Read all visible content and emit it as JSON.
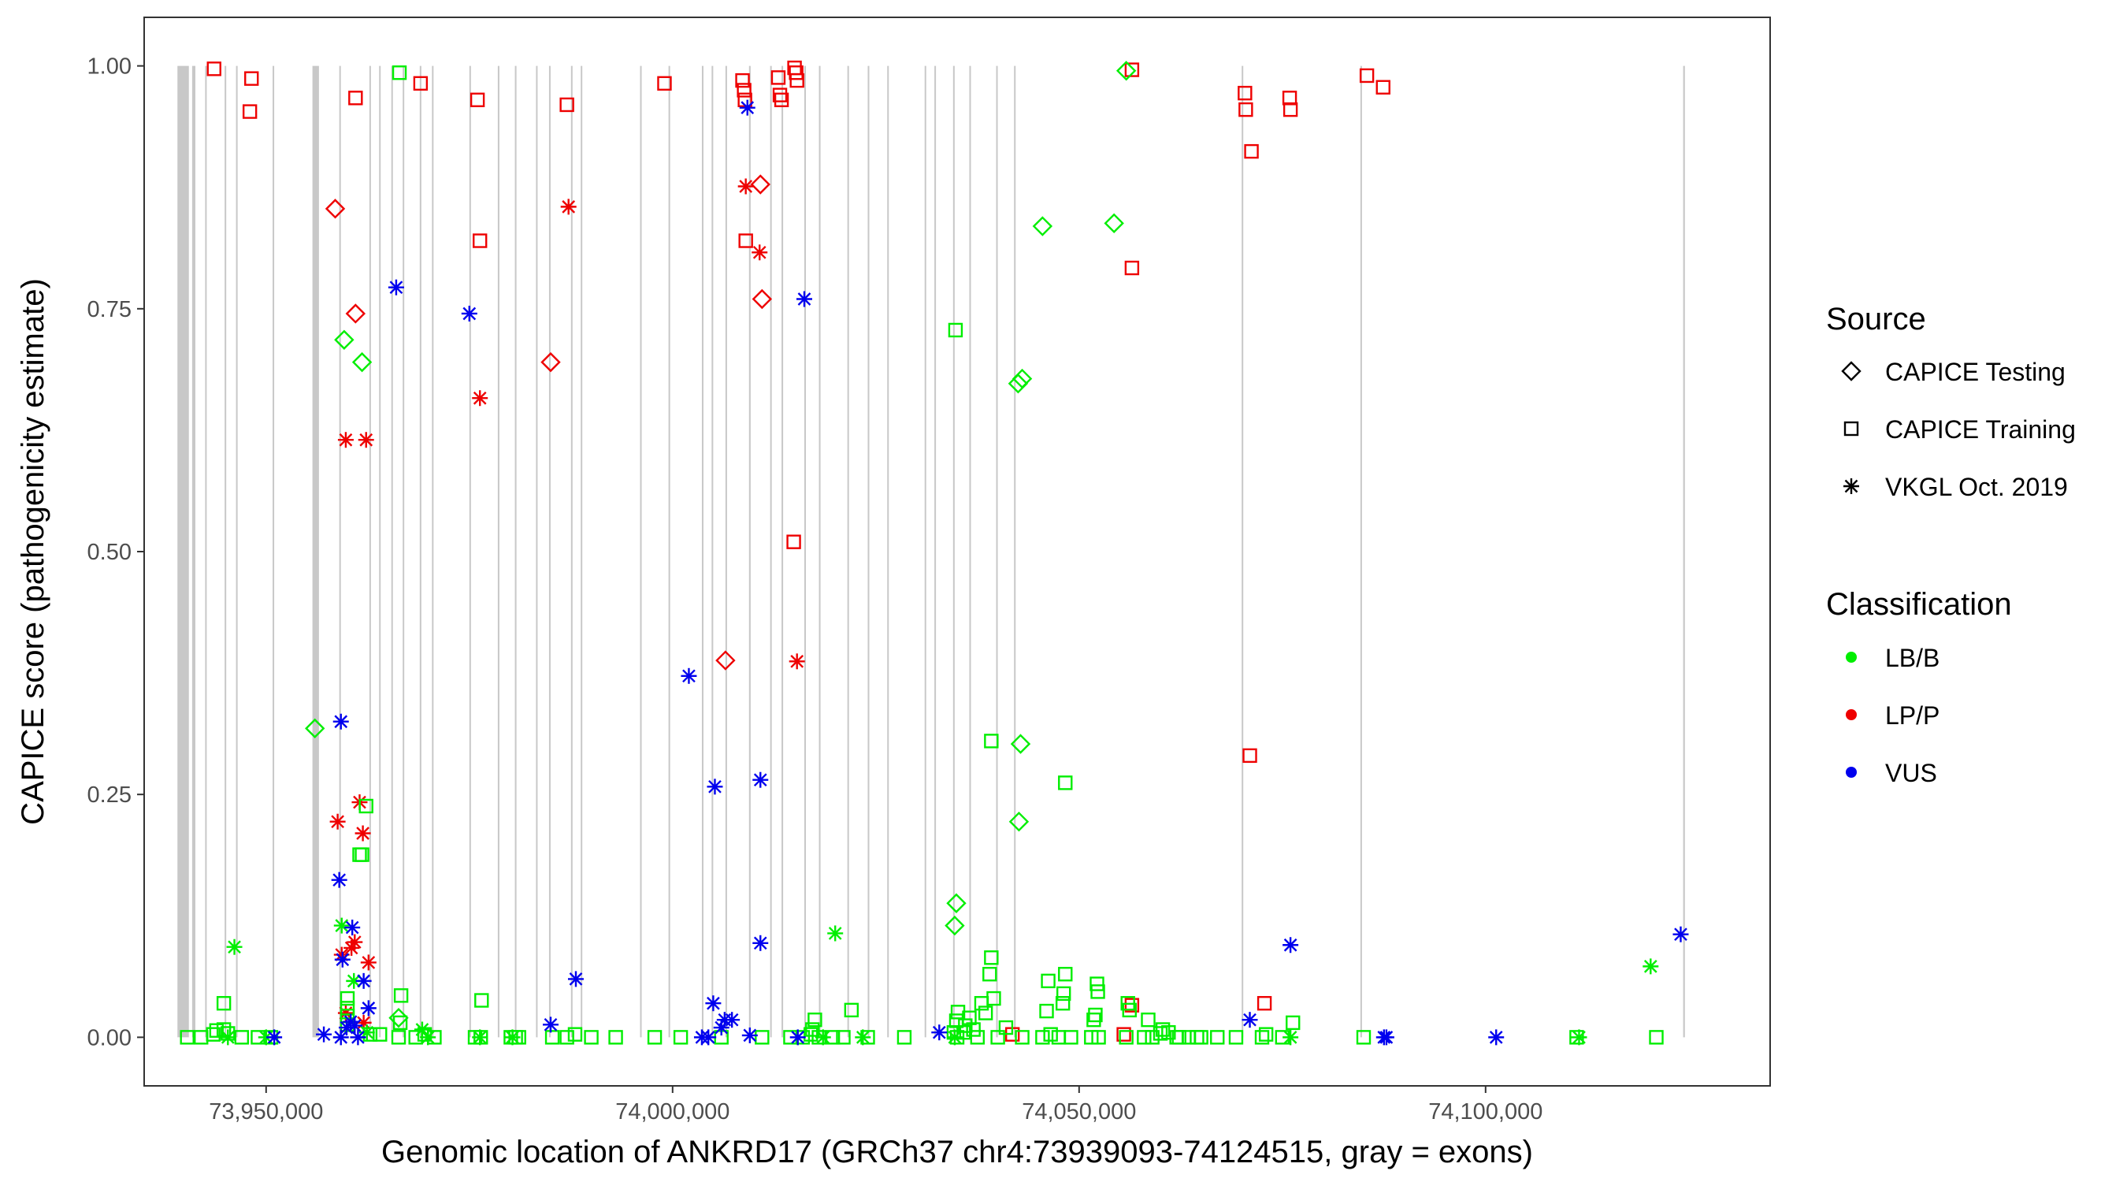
{
  "chart_data": {
    "type": "scatter",
    "xlabel": "Genomic location of ANKRD17 (GRCh37 chr4:73939093-74124515, gray = exons)",
    "ylabel": "CAPICE score (pathogenicity estimate)",
    "xlim": [
      73935000,
      74135000
    ],
    "ylim": [
      -0.05,
      1.05
    ],
    "x_ticks": [
      {
        "value": 73950000,
        "label": "73,950,000"
      },
      {
        "value": 74000000,
        "label": "74,000,000"
      },
      {
        "value": 74050000,
        "label": "74,050,000"
      },
      {
        "value": 74100000,
        "label": "74,100,000"
      }
    ],
    "y_ticks": [
      {
        "value": 0.0,
        "label": "0.00"
      },
      {
        "value": 0.25,
        "label": "0.25"
      },
      {
        "value": 0.5,
        "label": "0.50"
      },
      {
        "value": 0.75,
        "label": "0.75"
      },
      {
        "value": 1.0,
        "label": "1.00"
      }
    ],
    "exon_color": "#c8c8c8",
    "exons": [
      [
        73939093,
        73940500
      ],
      [
        73940900,
        73941300
      ],
      [
        73942500,
        73942650
      ],
      [
        73944900,
        73945050
      ],
      [
        73946300,
        73946400
      ],
      [
        73950800,
        73950900
      ],
      [
        73955700,
        73956500
      ],
      [
        73959000,
        73959100
      ],
      [
        73962700,
        73962800
      ],
      [
        73963900,
        73964000
      ],
      [
        73965400,
        73965500
      ],
      [
        73966800,
        73966900
      ],
      [
        73968900,
        73969000
      ],
      [
        73970400,
        73970500
      ],
      [
        73975000,
        73975100
      ],
      [
        73978500,
        73978600
      ],
      [
        73980600,
        73980700
      ],
      [
        73983200,
        73983300
      ],
      [
        73984800,
        73984900
      ],
      [
        73987500,
        73987600
      ],
      [
        73988700,
        73988800
      ],
      [
        73996000,
        73996100
      ],
      [
        73999500,
        73999600
      ],
      [
        74003600,
        74003700
      ],
      [
        74004800,
        74004900
      ],
      [
        74006500,
        74006600
      ],
      [
        74009400,
        74009600
      ],
      [
        74012000,
        74012100
      ],
      [
        74013400,
        74013500
      ],
      [
        74016200,
        74016300
      ],
      [
        74018000,
        74018100
      ],
      [
        74021500,
        74021600
      ],
      [
        74024000,
        74024100
      ],
      [
        74026400,
        74026500
      ],
      [
        74031000,
        74031100
      ],
      [
        74032200,
        74032300
      ],
      [
        74034500,
        74034600
      ],
      [
        74036500,
        74036600
      ],
      [
        74039800,
        74039900
      ],
      [
        74042000,
        74042100
      ],
      [
        74070000,
        74070100
      ],
      [
        74084600,
        74084700
      ],
      [
        74124300,
        74124515
      ]
    ],
    "legend_source": {
      "title": "Source",
      "items": [
        {
          "label": "CAPICE Testing",
          "shape": "diamond"
        },
        {
          "label": "CAPICE Training",
          "shape": "square"
        },
        {
          "label": "VKGL Oct. 2019",
          "shape": "asterisk"
        }
      ]
    },
    "legend_class": {
      "title": "Classification",
      "items": [
        {
          "label": "LB/B",
          "color": "#00ee00"
        },
        {
          "label": "LP/P",
          "color": "#ee0000"
        },
        {
          "label": "VUS",
          "color": "#0000ee"
        }
      ]
    },
    "series": [
      {
        "name": "CAPICE Training LP/P",
        "shape": "square",
        "color": "#ee0000",
        "points": [
          [
            73943600,
            0.997
          ],
          [
            73948000,
            0.953
          ],
          [
            73948200,
            0.987
          ],
          [
            73961000,
            0.967
          ],
          [
            73969000,
            0.982
          ],
          [
            73976000,
            0.965
          ],
          [
            73976300,
            0.82
          ],
          [
            73987000,
            0.96
          ],
          [
            73999000,
            0.982
          ],
          [
            74008600,
            0.985
          ],
          [
            74008800,
            0.975
          ],
          [
            74008900,
            0.965
          ],
          [
            74009000,
            0.82
          ],
          [
            74013000,
            0.988
          ],
          [
            74013200,
            0.97
          ],
          [
            74013400,
            0.965
          ],
          [
            74015000,
            0.998
          ],
          [
            74015200,
            0.993
          ],
          [
            74015300,
            0.985
          ],
          [
            74014900,
            0.51
          ],
          [
            74056500,
            0.996
          ],
          [
            74056500,
            0.792
          ],
          [
            74055500,
            0.003
          ],
          [
            74070400,
            0.972
          ],
          [
            74070500,
            0.955
          ],
          [
            74071200,
            0.912
          ],
          [
            74075900,
            0.967
          ],
          [
            74076000,
            0.955
          ],
          [
            74085400,
            0.99
          ],
          [
            74087400,
            0.978
          ],
          [
            74071000,
            0.29
          ],
          [
            74072800,
            0.035
          ],
          [
            74056500,
            0.033
          ],
          [
            74041800,
            0.003
          ]
        ]
      },
      {
        "name": "CAPICE Testing LP/P",
        "shape": "diamond",
        "color": "#ee0000",
        "points": [
          [
            73958500,
            0.853
          ],
          [
            73961000,
            0.745
          ],
          [
            73985000,
            0.695
          ],
          [
            74010800,
            0.878
          ],
          [
            74011000,
            0.76
          ],
          [
            74006500,
            0.388
          ]
        ]
      },
      {
        "name": "VKGL LP/P",
        "shape": "asterisk",
        "color": "#ee0000",
        "points": [
          [
            73976300,
            0.658
          ],
          [
            73987200,
            0.855
          ],
          [
            74009000,
            0.876
          ],
          [
            74010700,
            0.808
          ],
          [
            74015300,
            0.387
          ],
          [
            73959800,
            0.615
          ],
          [
            73962300,
            0.615
          ],
          [
            73958800,
            0.222
          ],
          [
            73961500,
            0.242
          ],
          [
            73961900,
            0.21
          ],
          [
            73960500,
            0.092
          ],
          [
            73960900,
            0.098
          ],
          [
            73959300,
            0.085
          ],
          [
            73962600,
            0.077
          ],
          [
            73962000,
            0.015
          ],
          [
            73959800,
            0.025
          ]
        ]
      },
      {
        "name": "CAPICE Training LB/B",
        "shape": "square",
        "color": "#00ee00",
        "points": [
          [
            73966400,
            0.993
          ],
          [
            73962300,
            0.238
          ],
          [
            73961500,
            0.188
          ],
          [
            73961800,
            0.188
          ],
          [
            73960000,
            0.04
          ],
          [
            73960000,
            0.03
          ],
          [
            73960000,
            0.022
          ],
          [
            73960000,
            0.013
          ],
          [
            73966600,
            0.043
          ],
          [
            73966500,
            0.015
          ],
          [
            73976500,
            0.038
          ],
          [
            73940300,
            0.0
          ],
          [
            73942000,
            0.0
          ],
          [
            73943500,
            0.003
          ],
          [
            73943900,
            0.007
          ],
          [
            73944800,
            0.008
          ],
          [
            73945300,
            0.004
          ],
          [
            73947000,
            0.0
          ],
          [
            73949000,
            0.0
          ],
          [
            73950600,
            0.0
          ],
          [
            73944800,
            0.035
          ],
          [
            73962800,
            0.003
          ],
          [
            73964000,
            0.003
          ],
          [
            73966300,
            0.0
          ],
          [
            73968400,
            0.0
          ],
          [
            73969500,
            0.003
          ],
          [
            73970700,
            0.0
          ],
          [
            73975700,
            0.0
          ],
          [
            73976400,
            0.0
          ],
          [
            73980100,
            0.0
          ],
          [
            73980700,
            0.0
          ],
          [
            73981100,
            0.0
          ],
          [
            73985200,
            0.0
          ],
          [
            73987000,
            0.0
          ],
          [
            73988000,
            0.003
          ],
          [
            73990000,
            0.0
          ],
          [
            73993000,
            0.0
          ],
          [
            73997800,
            0.0
          ],
          [
            74001000,
            0.0
          ],
          [
            74006000,
            0.0
          ],
          [
            74011000,
            0.0
          ],
          [
            74014500,
            0.0
          ],
          [
            74016000,
            0.0
          ],
          [
            74017000,
            0.003
          ],
          [
            74017200,
            0.008
          ],
          [
            74017500,
            0.018
          ],
          [
            74018000,
            0.0
          ],
          [
            74019700,
            0.0
          ],
          [
            74021000,
            0.0
          ],
          [
            74022000,
            0.028
          ],
          [
            74024000,
            0.0
          ],
          [
            74028500,
            0.0
          ],
          [
            74035000,
            0.0
          ],
          [
            74035800,
            0.005
          ],
          [
            74036000,
            0.012
          ],
          [
            74036500,
            0.02
          ],
          [
            74037000,
            0.008
          ],
          [
            74037500,
            0.0
          ],
          [
            74038000,
            0.035
          ],
          [
            74038500,
            0.025
          ],
          [
            74039000,
            0.065
          ],
          [
            74039200,
            0.082
          ],
          [
            74039200,
            0.305
          ],
          [
            74034800,
            0.728
          ],
          [
            74039500,
            0.04
          ],
          [
            74040000,
            0.0
          ],
          [
            74041000,
            0.01
          ],
          [
            74043000,
            0.0
          ],
          [
            74045500,
            0.0
          ],
          [
            74046000,
            0.027
          ],
          [
            74046200,
            0.058
          ],
          [
            74046500,
            0.003
          ],
          [
            74047500,
            0.0
          ],
          [
            74048000,
            0.035
          ],
          [
            74048100,
            0.045
          ],
          [
            74048300,
            0.065
          ],
          [
            74048300,
            0.262
          ],
          [
            74049000,
            0.0
          ],
          [
            74051500,
            0.0
          ],
          [
            74051800,
            0.018
          ],
          [
            74052000,
            0.023
          ],
          [
            74052200,
            0.055
          ],
          [
            74052300,
            0.047
          ],
          [
            74052400,
            0.0
          ],
          [
            74055800,
            0.0
          ],
          [
            74056000,
            0.035
          ],
          [
            74056200,
            0.028
          ],
          [
            74058000,
            0.0
          ],
          [
            74058500,
            0.018
          ],
          [
            74059000,
            0.0
          ],
          [
            74060300,
            0.008
          ],
          [
            74061000,
            0.005
          ],
          [
            74062000,
            0.0
          ],
          [
            74063500,
            0.0
          ],
          [
            74064500,
            0.0
          ],
          [
            74065000,
            0.0
          ],
          [
            74067000,
            0.0
          ],
          [
            74069300,
            0.0
          ],
          [
            74072500,
            0.0
          ],
          [
            74073000,
            0.003
          ],
          [
            74075000,
            0.0
          ],
          [
            74076300,
            0.015
          ],
          [
            74085000,
            0.0
          ],
          [
            74111200,
            0.0
          ],
          [
            74121000,
            0.0
          ],
          [
            74034600,
            0.005
          ],
          [
            74034900,
            0.017
          ],
          [
            74035100,
            0.026
          ],
          [
            74060000,
            0.004
          ],
          [
            74062300,
            0.0
          ]
        ]
      },
      {
        "name": "CAPICE Testing LB/B",
        "shape": "diamond",
        "color": "#00ee00",
        "points": [
          [
            74055800,
            0.995
          ],
          [
            74045500,
            0.835
          ],
          [
            74054300,
            0.838
          ],
          [
            74043000,
            0.678
          ],
          [
            74042500,
            0.673
          ],
          [
            73959600,
            0.718
          ],
          [
            73961800,
            0.695
          ],
          [
            74042800,
            0.302
          ],
          [
            74042600,
            0.222
          ],
          [
            73956000,
            0.318
          ],
          [
            74034900,
            0.138
          ],
          [
            74034700,
            0.115
          ],
          [
            73966300,
            0.02
          ]
        ]
      },
      {
        "name": "VKGL LB/B",
        "shape": "asterisk",
        "color": "#00ee00",
        "points": [
          [
            73946100,
            0.093
          ],
          [
            73959300,
            0.115
          ],
          [
            73960800,
            0.058
          ],
          [
            74020000,
            0.107
          ],
          [
            74120300,
            0.073
          ],
          [
            73962400,
            0.005
          ],
          [
            73969200,
            0.008
          ],
          [
            73969900,
            0.0
          ],
          [
            73976300,
            0.0
          ],
          [
            73980300,
            0.0
          ],
          [
            74018500,
            0.0
          ],
          [
            74023400,
            0.0
          ],
          [
            74034700,
            0.0
          ],
          [
            74076000,
            0.0
          ],
          [
            74111500,
            0.0
          ],
          [
            73945300,
            0.0
          ],
          [
            73950000,
            0.0
          ]
        ]
      },
      {
        "name": "VKGL VUS",
        "shape": "asterisk",
        "color": "#0000ee",
        "points": [
          [
            74009200,
            0.957
          ],
          [
            73966000,
            0.772
          ],
          [
            73975000,
            0.745
          ],
          [
            74016200,
            0.76
          ],
          [
            74002000,
            0.372
          ],
          [
            73959200,
            0.325
          ],
          [
            74005200,
            0.258
          ],
          [
            74010800,
            0.265
          ],
          [
            73959000,
            0.162
          ],
          [
            73960600,
            0.113
          ],
          [
            73959400,
            0.08
          ],
          [
            73962000,
            0.058
          ],
          [
            73962600,
            0.03
          ],
          [
            74010800,
            0.097
          ],
          [
            73988100,
            0.06
          ],
          [
            74076000,
            0.095
          ],
          [
            74124000,
            0.106
          ],
          [
            74071000,
            0.018
          ],
          [
            73985000,
            0.013
          ],
          [
            74005000,
            0.035
          ],
          [
            74006400,
            0.018
          ],
          [
            74007300,
            0.018
          ],
          [
            74006000,
            0.01
          ],
          [
            74009500,
            0.002
          ],
          [
            74004400,
            0.0
          ],
          [
            74003600,
            0.0
          ],
          [
            73959900,
            0.01
          ],
          [
            73960400,
            0.016
          ],
          [
            73960900,
            0.012
          ],
          [
            73957100,
            0.003
          ],
          [
            73959200,
            0.0
          ],
          [
            73961300,
            0.0
          ],
          [
            74032800,
            0.005
          ],
          [
            74087500,
            0.0
          ],
          [
            74101300,
            0.0
          ],
          [
            73951000,
            0.0
          ],
          [
            74015400,
            0.0
          ],
          [
            74087800,
            0.0
          ]
        ]
      }
    ]
  }
}
